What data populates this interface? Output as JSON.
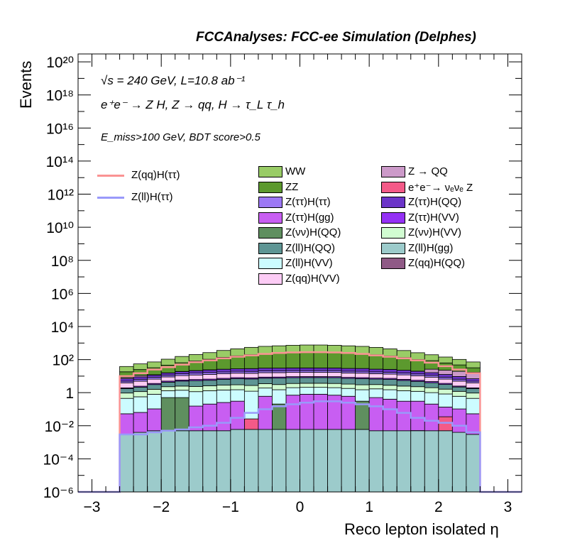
{
  "header": {
    "title": "FCCAnalyses: FCC-ee Simulation (Delphes)",
    "xlabel": "Reco lepton isolated η",
    "ylabel": "Events"
  },
  "annotations": {
    "line1": "√s = 240 GeV, L=10.8 ab⁻¹",
    "line2": "e⁺e⁻ → Z H, Z → qq, H → τ_L τ_h",
    "line3": "E_miss>100 GeV, BDT score>0.5"
  },
  "chart_data": {
    "type": "histogram",
    "stacked": true,
    "yscale": "log",
    "xlim": [
      -3.2,
      3.2
    ],
    "ylim": [
      1e-06,
      3e+20
    ],
    "xticks": [
      "−3",
      "−2",
      "−1",
      "0",
      "1",
      "2",
      "3"
    ],
    "yticks": [
      "10⁻⁶",
      "10⁻⁴",
      "10⁻²",
      "1",
      "10²",
      "10⁴",
      "10⁶",
      "10⁸",
      "10¹⁰",
      "10¹²",
      "10¹⁴",
      "10¹⁶",
      "10¹⁸",
      "10²⁰"
    ],
    "bin_edges": [
      -2.6,
      -2.4,
      -2.2,
      -2.0,
      -1.8,
      -1.6,
      -1.4,
      -1.2,
      -1.0,
      -0.8,
      -0.6,
      -0.4,
      -0.2,
      0.0,
      0.2,
      0.4,
      0.6,
      0.8,
      1.0,
      1.2,
      1.4,
      1.6,
      1.8,
      2.0,
      2.2,
      2.4,
      2.6
    ],
    "stack_bottom_to_top": [
      {
        "name": "Z(ll)H(gg)",
        "color": "#9ccbcb",
        "values": [
          0.003,
          0.004,
          0.005,
          0.005,
          0.005,
          0.005,
          0.005,
          0.005,
          0.006,
          0.006,
          0.006,
          0.006,
          0.006,
          0.006,
          0.006,
          0.006,
          0.006,
          0.006,
          0.005,
          0.005,
          0.005,
          0.005,
          0.005,
          0.005,
          0.004,
          0.003
        ]
      },
      {
        "name": "Z(vv)H(QQ)",
        "color": "#5f8f5f",
        "values": [
          0,
          0,
          0,
          0.5,
          0.5,
          0,
          0,
          0,
          0,
          0,
          0,
          0.2,
          0,
          0,
          0,
          0,
          0,
          0.3,
          0,
          0,
          0,
          0,
          0,
          0,
          0,
          0
        ]
      },
      {
        "name": "e⁺e⁻→ νₑνₑ Z",
        "color": "#f45a88",
        "values": [
          0,
          0,
          0,
          0,
          0,
          0,
          0,
          0,
          0,
          0.02,
          0,
          0,
          0,
          0,
          0,
          0,
          0,
          0,
          0,
          0,
          0,
          0,
          0,
          0.03,
          0,
          0
        ]
      },
      {
        "name": "Z(qq)H(QQ)",
        "color": "#8f5a86",
        "values": [
          0,
          0,
          0,
          0,
          0,
          0,
          0,
          0,
          0,
          0,
          0,
          0,
          0,
          0,
          0,
          0,
          0,
          0,
          0,
          0,
          0,
          0.0001,
          0,
          0,
          0,
          0
        ]
      },
      {
        "name": "Z(ττ)H(gg)",
        "color": "#c85ef2",
        "values": [
          0.05,
          0.06,
          0.1,
          0,
          0,
          0.15,
          0.2,
          0.25,
          0.3,
          0,
          0.6,
          0,
          0.7,
          0.8,
          0.8,
          0.7,
          0.6,
          0,
          0.5,
          0.4,
          0.3,
          0.3,
          0.2,
          0.1,
          0.1,
          0.05
        ]
      },
      {
        "name": "Z(ll)H(VV)",
        "color": "#ccfcff",
        "values": [
          0.4,
          0.5,
          0.7,
          0.8,
          0.9,
          1.0,
          1.1,
          1.2,
          1.2,
          1.2,
          1.3,
          1.3,
          1.3,
          1.3,
          1.3,
          1.3,
          1.2,
          1.2,
          1.2,
          1.1,
          1.0,
          0.9,
          0.8,
          0.7,
          0.5,
          0.4
        ]
      },
      {
        "name": "Z(vv)H(VV)",
        "color": "#d1fcd1",
        "values": [
          0.5,
          0.6,
          0.8,
          1.0,
          1.1,
          1.2,
          1.3,
          1.4,
          1.5,
          1.5,
          1.6,
          1.6,
          1.6,
          1.6,
          1.6,
          1.6,
          1.5,
          1.5,
          1.4,
          1.3,
          1.2,
          1.1,
          1.0,
          0.8,
          0.6,
          0.5
        ]
      },
      {
        "name": "Z(ll)H(QQ)",
        "color": "#5e9594",
        "values": [
          0.8,
          1.0,
          1.5,
          2,
          2.5,
          3,
          3,
          3.5,
          4,
          4,
          4,
          4.5,
          4.5,
          4.5,
          4.5,
          4.5,
          4,
          4,
          3.5,
          3.5,
          3,
          2.5,
          2,
          1.5,
          1,
          0.8
        ]
      },
      {
        "name": "Z(ττ)H(VV)",
        "color": "#9431f5",
        "values": [
          0.2,
          0.3,
          0.5,
          0.7,
          0.8,
          0.9,
          1,
          1,
          1.1,
          1.1,
          1.2,
          1.2,
          1.2,
          1.2,
          1.2,
          1.2,
          1.1,
          1.1,
          1,
          1,
          0.9,
          0.8,
          0.7,
          0.5,
          0.3,
          0.2
        ]
      },
      {
        "name": "Z(qq)H(VV)",
        "color": "#fcccf5",
        "values": [
          2,
          2.5,
          3,
          4,
          5,
          5.5,
          6,
          6.5,
          7,
          7,
          7.5,
          7.5,
          7.5,
          7.5,
          7.5,
          7.5,
          7,
          7,
          6.5,
          6,
          5.5,
          5,
          4,
          3,
          2.5,
          2
        ]
      },
      {
        "name": "Z(ττ)H(ττ)",
        "color": "#9c78f5",
        "values": [
          1,
          1.5,
          2,
          2.5,
          3,
          3.5,
          4,
          4,
          4.5,
          4.5,
          5,
          5,
          5,
          5,
          5,
          5,
          4.5,
          4.5,
          4,
          4,
          3.5,
          3,
          2.5,
          2,
          1.5,
          1
        ]
      },
      {
        "name": "Z(ττ)H(QQ)",
        "color": "#6b35c8",
        "values": [
          2,
          2.5,
          3,
          4,
          5,
          6,
          7,
          8,
          8,
          9,
          9,
          9,
          9,
          9,
          9,
          9,
          9,
          9,
          8,
          8,
          7,
          6,
          5,
          4,
          3,
          2
        ]
      },
      {
        "name": "Z → QQ",
        "color": "#cc9ac9",
        "values": [
          1.3,
          2,
          0.5,
          0.3,
          0.5,
          0.5,
          0.6,
          0.3,
          0.2,
          0.3,
          0.3,
          0.3,
          0.5,
          0.4,
          0.3,
          0.3,
          0.3,
          0.3,
          0.3,
          0.3,
          0.3,
          0.4,
          10,
          10,
          10,
          10
        ]
      },
      {
        "name": "ZZ",
        "color": "#5c992e",
        "values": [
          10,
          14,
          20,
          30,
          45,
          60,
          80,
          110,
          140,
          170,
          200,
          220,
          240,
          250,
          250,
          240,
          220,
          200,
          170,
          140,
          110,
          80,
          60,
          40,
          28,
          15
        ]
      },
      {
        "name": "WW",
        "color": "#99cc66",
        "values": [
          20,
          30,
          40,
          60,
          90,
          120,
          160,
          220,
          280,
          350,
          400,
          430,
          460,
          480,
          480,
          460,
          430,
          400,
          350,
          280,
          220,
          160,
          110,
          80,
          55,
          40
        ]
      }
    ],
    "signal_lines": [
      {
        "name": "Z(qq)H(ττ)",
        "color": "#fa9393",
        "values": [
          10,
          15,
          25,
          35,
          50,
          70,
          90,
          120,
          150,
          180,
          220,
          250,
          270,
          280,
          280,
          270,
          250,
          220,
          180,
          150,
          120,
          90,
          65,
          40,
          25,
          15
        ]
      },
      {
        "name": "Z(ll)H(ττ)",
        "color": "#9999fa",
        "values": [
          0.003,
          0.003,
          0.004,
          0.005,
          0.006,
          0.008,
          0.01,
          0.015,
          0.03,
          0.06,
          0.1,
          0.15,
          0.2,
          0.25,
          0.3,
          0.3,
          0.25,
          0.2,
          0.15,
          0.1,
          0.06,
          0.03,
          0.02,
          0.015,
          0.01,
          0.004
        ]
      }
    ],
    "legend": {
      "lines": [
        "Z(qq)H(ττ)",
        "Z(ll)H(ττ)"
      ],
      "col1": [
        "WW",
        "ZZ",
        "Z(ττ)H(ττ)",
        "Z(ττ)H(gg)",
        "Z(νν)H(QQ)",
        "Z(ll)H(QQ)",
        "Z(ll)H(VV)",
        "Z(qq)H(VV)"
      ],
      "col2": [
        "Z → QQ",
        "e⁺e⁻→ νₑνₑ Z",
        "Z(ττ)H(QQ)",
        "Z(ττ)H(VV)",
        "Z(νν)H(VV)",
        "Z(ll)H(gg)",
        "Z(qq)H(QQ)"
      ],
      "col1_colors": [
        "#99cc66",
        "#5c992e",
        "#9c78f5",
        "#c85ef2",
        "#5f8f5f",
        "#5e9594",
        "#ccfcff",
        "#fcccf5"
      ],
      "col2_colors": [
        "#cc9ac9",
        "#f45a88",
        "#6b35c8",
        "#9431f5",
        "#d1fcd1",
        "#9ccbcb",
        "#8f5a86"
      ]
    }
  }
}
